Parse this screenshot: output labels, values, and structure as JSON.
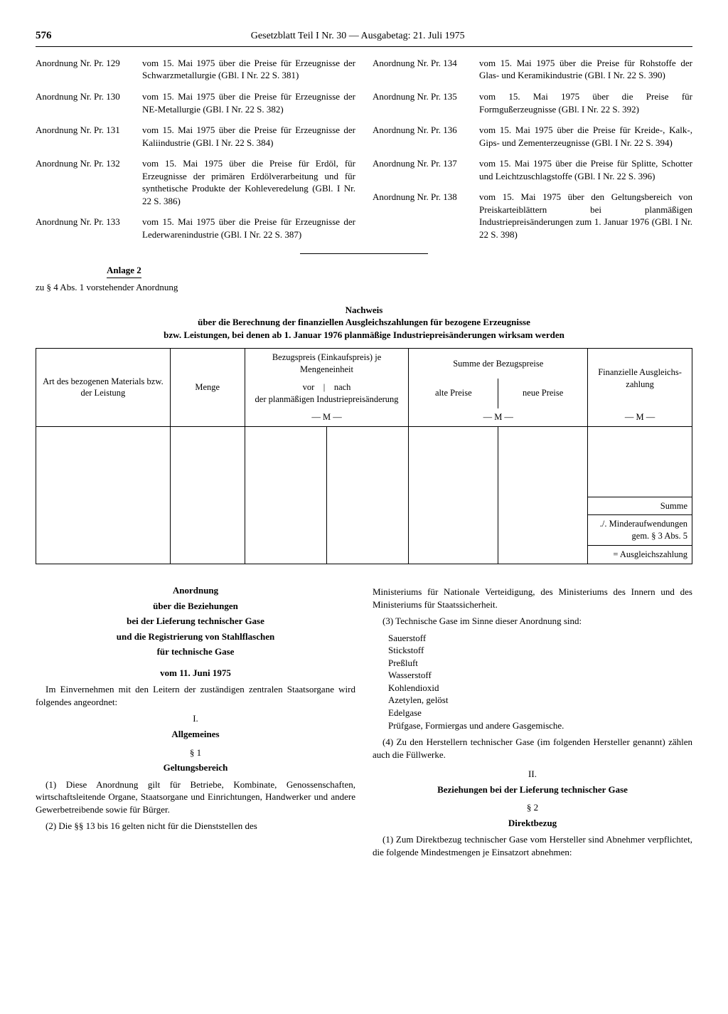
{
  "header": {
    "page": "576",
    "title": "Gesetzblatt Teil I Nr. 30 — Ausgabetag: 21. Juli 1975"
  },
  "left_ords": [
    {
      "label": "Anordnung Nr. Pr. 129",
      "text": "vom 15. Mai 1975 über die Preise für Erzeugnisse der Schwarzmetallurgie (GBl. I Nr. 22 S. 381)"
    },
    {
      "label": "Anordnung Nr. Pr. 130",
      "text": "vom 15. Mai 1975 über die Preise für Erzeugnisse der NE-Metallurgie (GBl. I Nr. 22 S. 382)"
    },
    {
      "label": "Anordnung Nr. Pr. 131",
      "text": "vom 15. Mai 1975 über die Preise für Erzeugnisse der Kaliindustrie (GBl. I Nr. 22 S. 384)"
    },
    {
      "label": "Anordnung Nr. Pr. 132",
      "text": "vom 15. Mai 1975 über die Preise für Erdöl, für Erzeugnisse der primären Erdölverarbeitung und für synthetische Produkte der Kohleveredelung (GBl. I Nr. 22 S. 386)"
    },
    {
      "label": "Anordnung Nr. Pr. 133",
      "text": "vom 15. Mai 1975 über die Preise für Erzeugnisse der Lederwarenindustrie (GBl. I Nr. 22 S. 387)"
    }
  ],
  "right_ords": [
    {
      "label": "Anordnung Nr. Pr. 134",
      "text": "vom 15. Mai 1975 über die Preise für Rohstoffe der Glas- und Keramikindustrie (GBl. I Nr. 22 S. 390)"
    },
    {
      "label": "Anordnung Nr. Pr. 135",
      "text": "vom 15. Mai 1975 über die Preise für Formgußerzeugnisse (GBl. I Nr. 22 S. 392)"
    },
    {
      "label": "Anordnung Nr. Pr. 136",
      "text": "vom 15. Mai 1975 über die Preise für Kreide-, Kalk-, Gips- und Zementerzeugnisse (GBl. I Nr. 22 S. 394)"
    },
    {
      "label": "Anordnung Nr. Pr. 137",
      "text": "vom 15. Mai 1975 über die Preise für Splitte, Schotter und Leichtzuschlagstoffe (GBl. I Nr. 22 S. 396)"
    },
    {
      "label": "Anordnung Nr. Pr. 138",
      "text": "vom 15. Mai 1975 über den Geltungsbereich von Preiskarteiblättern bei planmäßigen Industriepreisänderungen zum 1. Januar 1976 (GBl. I Nr. 22 S. 398)"
    }
  ],
  "anlage": {
    "label": "Anlage 2",
    "sub": "zu § 4 Abs. 1 vorstehender Anordnung"
  },
  "nachweis": {
    "title": "Nachweis",
    "sub1": "über die Berechnung der finanziellen Ausgleichszahlungen für bezogene Erzeugnisse",
    "sub2": "bzw. Leistungen, bei denen ab 1. Januar 1976 planmäßige Industriepreisänderungen wirksam werden"
  },
  "table": {
    "col1": "Art des bezogenen Materials bzw. der Leistung",
    "col2": "Menge",
    "col3_top": "Bezugspreis (Einkaufspreis) je Mengeneinheit",
    "col3_vor": "vor",
    "col3_nach": "nach",
    "col3_bottom": "der planmäßigen Industriepreisänderung",
    "col3_unit": "— M —",
    "col45_top": "Summe der Bezugspreise",
    "col4": "alte Preise",
    "col5": "neue Preise",
    "col45_unit": "— M —",
    "col6": "Finanzielle Ausgleichs­zahlung",
    "col6_unit": "— M —",
    "summe": "Summe",
    "minder": "./. Minder­aufwendungen gem. § 3 Abs. 5",
    "ausgleich": "= Ausgleichs­zahlung"
  },
  "reg": {
    "title1": "Anordnung",
    "title2": "über die Beziehungen",
    "title3": "bei der Lieferung technischer Gase",
    "title4": "und die Registrierung von Stahlflaschen",
    "title5": "für technische Gase",
    "date": "vom 11. Juni 1975",
    "intro": "Im Einvernehmen mit den Leitern der zuständigen zentralen Staatsorgane wird folgendes angeordnet:",
    "sec_I": "I.",
    "sec_I_label": "Allgemeines",
    "para1_label": "§ 1",
    "para1_title": "Geltungsbereich",
    "para1_1": "(1) Diese Anordnung gilt für Betriebe, Kombinate, Genossenschaften, wirtschaftsleitende Organe, Staatsorgane und Einrichtungen, Handwerker und andere Gewerbetreibende sowie für Bürger.",
    "para1_2": "(2) Die §§ 13 bis 16 gelten nicht für die Dienststellen des",
    "right_top": "Ministeriums für Nationale Verteidigung, des Ministeriums des Innern und des Ministeriums für Staatssicherheit.",
    "para1_3": "(3) Technische Gase im Sinne dieser Anordnung sind:",
    "gases": [
      "Sauerstoff",
      "Stickstoff",
      "Preßluft",
      "Wasserstoff",
      "Kohlendioxid",
      "Azetylen, gelöst",
      "Edelgase",
      "Prüfgase, Formiergas und andere Gasgemische."
    ],
    "para1_4": "(4) Zu den Herstellern technischer Gase (im folgenden Hersteller genannt) zählen auch die Füllwerke.",
    "sec_II": "II.",
    "sec_II_label": "Beziehungen bei der Lieferung technischer Gase",
    "para2_label": "§ 2",
    "para2_title": "Direktbezug",
    "para2_1": "(1) Zum Direktbezug technischer Gase vom Hersteller sind Abnehmer verpflichtet, die folgende Mindestmengen je Einsatzort abnehmen:"
  }
}
